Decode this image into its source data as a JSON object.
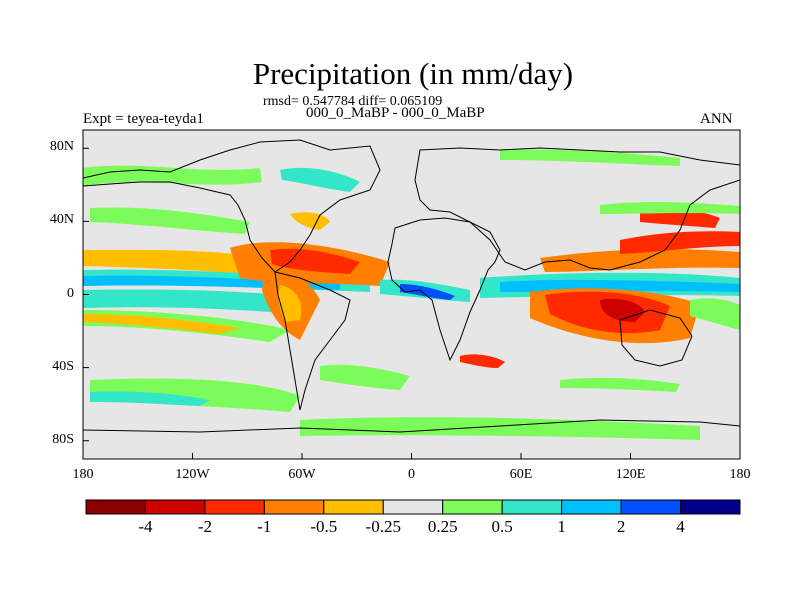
{
  "title": "Precipitation (in mm/day)",
  "stats": "rmsd= 0.547784 diff= 0.065109",
  "subtitle": "000_0_MaBP - 000_0_MaBP",
  "experiment": "Expt = teyea-teyda1",
  "season": "ANN",
  "map": {
    "lon_range": [
      -180,
      180
    ],
    "lat_range": [
      -90,
      90
    ],
    "lat_ticks": [
      {
        "value": 80,
        "label": "80N"
      },
      {
        "value": 40,
        "label": "40N"
      },
      {
        "value": 0,
        "label": "0"
      },
      {
        "value": -40,
        "label": "40S"
      },
      {
        "value": -80,
        "label": "80S"
      }
    ],
    "lon_ticks": [
      {
        "value": -180,
        "label": "180"
      },
      {
        "value": -120,
        "label": "120W"
      },
      {
        "value": -60,
        "label": "60W"
      },
      {
        "value": 0,
        "label": "0"
      },
      {
        "value": 60,
        "label": "60E"
      },
      {
        "value": 120,
        "label": "120E"
      },
      {
        "value": 180,
        "label": "180"
      }
    ],
    "background_color": "#e6e6e6"
  },
  "colorbar": {
    "colors": [
      "#8b0000",
      "#cd0000",
      "#ff2a00",
      "#ff7f00",
      "#ffbf00",
      "#e6e6e6",
      "#7cfc5a",
      "#33e6c8",
      "#00bfff",
      "#0050ff",
      "#00008b"
    ],
    "labels": [
      "-4",
      "-2",
      "-1",
      "-0.5",
      "-0.25",
      "0.25",
      "0.5",
      "1",
      "2",
      "4"
    ]
  }
}
